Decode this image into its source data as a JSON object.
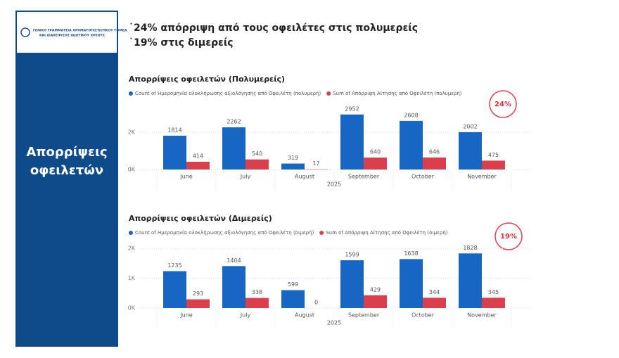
{
  "logo": {
    "lines": [
      "ΓΕΝΙΚΗ ΓΡΑΜΜΑΤΕΙΑ ΧΡΗΜΑΤΟΠΙΣΤΩΤΙΚΟΥ ΤΟΜΕΑ",
      "ΚΑΙ ΔΙΑΧΕΙΡΙΣΗΣ ΙΔΙΩΤΙΚΟΥ ΧΡΕΟΥΣ"
    ]
  },
  "sidebar": {
    "title_lines": [
      "Απορρίψεις",
      "οφειλετών"
    ]
  },
  "summary": [
    "˙24% απόρριψη από τους οφειλέτες στις πολυμερείς",
    "˙19% στις διμερείς"
  ],
  "chart_data": [
    {
      "type": "bar",
      "title": "Απορρίψεις οφειλετών (Πολυμερείς)",
      "x_label": "2025",
      "annotation": "24%",
      "categories": [
        "June",
        "July",
        "August",
        "September",
        "October",
        "November"
      ],
      "series": [
        {
          "name": "Count of Ημερομηνία ολοκλήρωσης αξιολόγησης από Οφειλέτη (πολυμερή)",
          "color": "#1866c4",
          "values": [
            1814,
            2262,
            319,
            2952,
            2608,
            2002
          ]
        },
        {
          "name": "Sum of Απόρριψη Αίτησης από Οφειλέτη (πολυμερή)",
          "color": "#d9404c",
          "values": [
            414,
            540,
            17,
            640,
            646,
            475
          ]
        }
      ],
      "ylim": [
        0,
        3000
      ],
      "yticks": [
        {
          "value": 0,
          "label": "0K"
        },
        {
          "value": 2000,
          "label": "2K"
        }
      ],
      "grid": true
    },
    {
      "type": "bar",
      "title": "Απορρίψεις οφειλετών (Διμερείς)",
      "x_label": "2025",
      "annotation": "19%",
      "categories": [
        "June",
        "July",
        "August",
        "September",
        "October",
        "November"
      ],
      "series": [
        {
          "name": "Count of Ημερομηνία ολοκλήρωσης αξιολόγησης από Οφειλέτη (διμερή)",
          "color": "#1866c4",
          "values": [
            1235,
            1404,
            599,
            1599,
            1638,
            1828
          ]
        },
        {
          "name": "Sum of Απόρριψη Αίτησης από Οφειλέτη (διμερή)",
          "color": "#d9404c",
          "values": [
            293,
            338,
            0,
            429,
            344,
            345
          ]
        }
      ],
      "ylim": [
        0,
        2000
      ],
      "yticks": [
        {
          "value": 0,
          "label": "0K"
        },
        {
          "value": 1000,
          "label": "1K"
        },
        {
          "value": 2000,
          "label": "2K"
        }
      ],
      "grid": true
    }
  ]
}
